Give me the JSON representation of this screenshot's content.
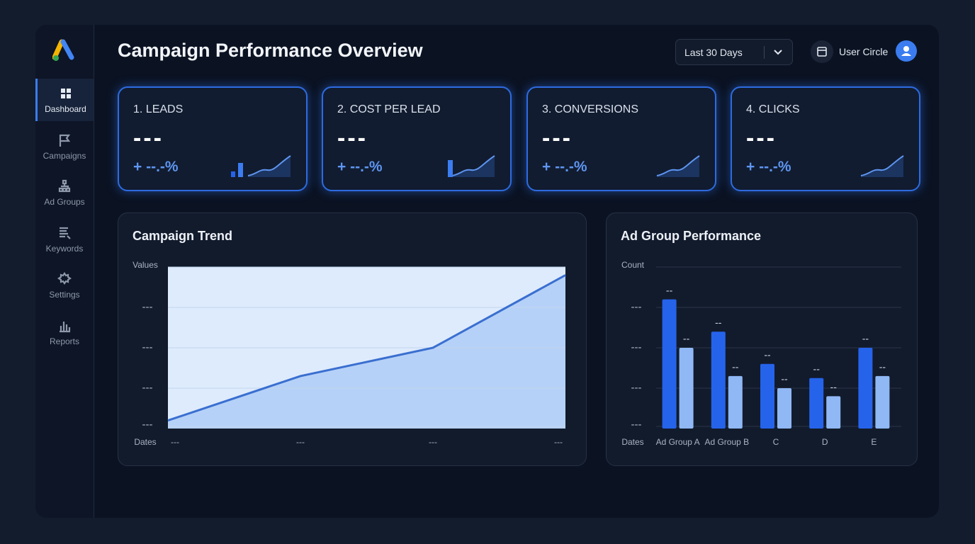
{
  "sidebar": {
    "nav": [
      "Dashboard",
      "Campaigns",
      "Ad Groups",
      "Keywords",
      "Settings",
      "Reports"
    ]
  },
  "header": {
    "title": "Campaign Performance Overview",
    "date_range": "Last 30 Days",
    "user": "User Circle"
  },
  "kpis": [
    {
      "title": "1. LEADS",
      "value": "---",
      "change": "+ --.-%"
    },
    {
      "title": "2. COST PER LEAD",
      "value": "---",
      "change": "+ --.-%"
    },
    {
      "title": "3. CONVERSIONS",
      "value": "---",
      "change": "+ --.-%"
    },
    {
      "title": "4. CLICKS",
      "value": "---",
      "change": "+ --.-%"
    }
  ],
  "chart_data": [
    {
      "type": "line",
      "title": "Campaign Trend",
      "y_label": "Values",
      "x_label": "Dates",
      "categories": [
        "---",
        "---",
        "---",
        "---"
      ],
      "series": [
        {
          "color": "#3a6fd0",
          "values": [
            0.2,
            1.3,
            2.0,
            3.8
          ]
        }
      ],
      "ylim": [
        0,
        4
      ],
      "yticks": [
        {
          "value": 0,
          "label": "---"
        },
        {
          "value": 1,
          "label": "---"
        },
        {
          "value": 2,
          "label": "---"
        },
        {
          "value": 3,
          "label": "---"
        }
      ],
      "grid": true
    },
    {
      "type": "bar",
      "title": "Ad Group Performance",
      "y_label": "Count",
      "x_label": "Dates",
      "categories": [
        "Ad Group A",
        "Ad Group B",
        "C",
        "D",
        "E"
      ],
      "series": [
        {
          "color": "#2563eb",
          "values": [
            3.2,
            2.4,
            1.6,
            1.25,
            2.0
          ],
          "value_labels": [
            "--",
            "--",
            "--",
            "--",
            "--"
          ]
        },
        {
          "color": "#8fb8f5",
          "values": [
            2.0,
            1.3,
            1.0,
            0.8,
            1.3
          ],
          "value_labels": [
            "--",
            "--",
            "--",
            "--",
            "--"
          ]
        }
      ],
      "ylim": [
        0,
        4
      ],
      "yticks": [
        {
          "value": 0,
          "label": "---"
        },
        {
          "value": 1,
          "label": "---"
        },
        {
          "value": 2,
          "label": "---"
        },
        {
          "value": 3,
          "label": "---"
        }
      ],
      "grid": true
    }
  ]
}
